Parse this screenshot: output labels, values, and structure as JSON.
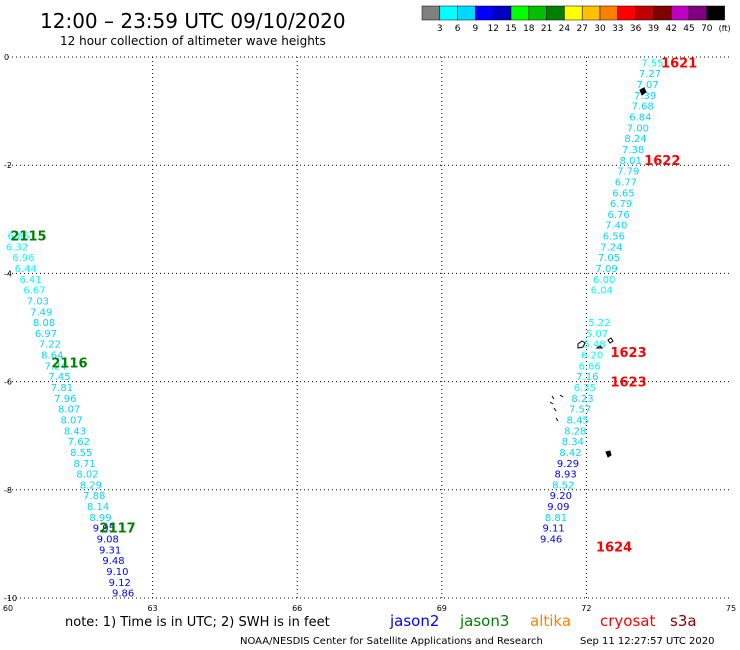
{
  "header": {
    "title": "12:00 – 23:59 UTC 09/10/2020",
    "subtitle": "12 hour collection of altimeter wave heights"
  },
  "scale": {
    "colors": [
      "#808080",
      "#00ffff",
      "#00d8ff",
      "#0000ff",
      "#0000c0",
      "#00ff00",
      "#00c000",
      "#008000",
      "#ffff00",
      "#ffc000",
      "#ff8000",
      "#ff0000",
      "#c00000",
      "#800000",
      "#c000c0",
      "#800080",
      "#000000"
    ],
    "labels": [
      "3",
      "6",
      "9",
      "12",
      "15",
      "18",
      "21",
      "24",
      "27",
      "30",
      "33",
      "36",
      "39",
      "42",
      "45",
      "70"
    ],
    "unit": "(ft)"
  },
  "footer": {
    "note": "note: 1) Time is in UTC; 2) SWH is in feet",
    "satellites": [
      {
        "name": "jason2",
        "color": "#0000ff"
      },
      {
        "name": "jason3",
        "color": "#008000"
      },
      {
        "name": "altika",
        "color": "#ff8000"
      },
      {
        "name": "cryosat",
        "color": "#ff0000"
      },
      {
        "name": "s3a",
        "color": "#800000"
      }
    ],
    "credit": "NOAA/NESDIS Center for Satellite Applications and Research",
    "timestamp": "Sep 11 12:27:57 UTC 2020"
  },
  "chart_data": {
    "type": "scatter",
    "xlim": [
      60,
      75
    ],
    "ylim": [
      -10,
      0
    ],
    "x_ticks": [
      "60",
      "63",
      "66",
      "69",
      "72",
      "75"
    ],
    "y_ticks": [
      "0",
      "-2",
      "-4",
      "-6",
      "-8",
      "-10"
    ],
    "grid": true,
    "tracks": [
      {
        "points": [
          {
            "x": 60.45,
            "y": -3.3,
            "v": "6.85",
            "c": "#00ffff"
          },
          {
            "x": 60.42,
            "y": -3.5,
            "v": "6.32",
            "c": "#00ffff"
          },
          {
            "x": 60.55,
            "y": -3.7,
            "v": "6.96",
            "c": "#00ffff"
          },
          {
            "x": 60.6,
            "y": -3.9,
            "v": "6.44",
            "c": "#00ffff"
          },
          {
            "x": 60.7,
            "y": -4.1,
            "v": "6.41",
            "c": "#00ffff"
          },
          {
            "x": 60.78,
            "y": -4.3,
            "v": "6.67",
            "c": "#00ffff"
          },
          {
            "x": 60.85,
            "y": -4.5,
            "v": "7.03",
            "c": "#00d8ff"
          },
          {
            "x": 60.92,
            "y": -4.7,
            "v": "7.49",
            "c": "#00d8ff"
          },
          {
            "x": 60.98,
            "y": -4.9,
            "v": "8.08",
            "c": "#00d8ff"
          },
          {
            "x": 61.02,
            "y": -5.1,
            "v": "6.97",
            "c": "#00d8ff"
          },
          {
            "x": 61.1,
            "y": -5.3,
            "v": "7.22",
            "c": "#00d8ff"
          },
          {
            "x": 61.15,
            "y": -5.5,
            "v": "8.64",
            "c": "#00d8ff"
          },
          {
            "x": 61.22,
            "y": -5.7,
            "v": "7.24",
            "c": "#00d8ff"
          },
          {
            "x": 61.3,
            "y": -5.9,
            "v": "7.45",
            "c": "#00d8ff"
          },
          {
            "x": 61.35,
            "y": -6.1,
            "v": "7.81",
            "c": "#00d8ff"
          },
          {
            "x": 61.42,
            "y": -6.3,
            "v": "7.96",
            "c": "#00d8ff"
          },
          {
            "x": 61.5,
            "y": -6.5,
            "v": "8.07",
            "c": "#00d8ff"
          },
          {
            "x": 61.55,
            "y": -6.7,
            "v": "8.07",
            "c": "#00d8ff"
          },
          {
            "x": 61.62,
            "y": -6.9,
            "v": "8.43",
            "c": "#00d8ff"
          },
          {
            "x": 61.7,
            "y": -7.1,
            "v": "7.62",
            "c": "#00d8ff"
          },
          {
            "x": 61.75,
            "y": -7.3,
            "v": "8.55",
            "c": "#00d8ff"
          },
          {
            "x": 61.82,
            "y": -7.5,
            "v": "8.71",
            "c": "#00d8ff"
          },
          {
            "x": 61.88,
            "y": -7.7,
            "v": "8.02",
            "c": "#00d8ff"
          },
          {
            "x": 61.95,
            "y": -7.9,
            "v": "8.29",
            "c": "#00d8ff"
          },
          {
            "x": 62.02,
            "y": -8.1,
            "v": "7.88",
            "c": "#00d8ff"
          },
          {
            "x": 62.1,
            "y": -8.3,
            "v": "8.14",
            "c": "#00d8ff"
          },
          {
            "x": 62.15,
            "y": -8.5,
            "v": "8.99",
            "c": "#00d8ff"
          },
          {
            "x": 62.22,
            "y": -8.7,
            "v": "9.95",
            "c": "#0000ff"
          },
          {
            "x": 62.3,
            "y": -8.9,
            "v": "9.08",
            "c": "#0000ff"
          },
          {
            "x": 62.35,
            "y": -9.1,
            "v": "9.31",
            "c": "#0000ff"
          },
          {
            "x": 62.42,
            "y": -9.3,
            "v": "9.48",
            "c": "#0000ff"
          },
          {
            "x": 62.5,
            "y": -9.5,
            "v": "9.10",
            "c": "#0000ff"
          },
          {
            "x": 62.55,
            "y": -9.7,
            "v": "9.12",
            "c": "#0000ff"
          },
          {
            "x": 62.62,
            "y": -9.9,
            "v": "9.86",
            "c": "#0000ff"
          }
        ],
        "times": [
          {
            "x": 60.8,
            "y": -3.3,
            "t": "2115",
            "c": "#008000"
          },
          {
            "x": 61.65,
            "y": -5.65,
            "t": "2116",
            "c": "#008000"
          },
          {
            "x": 62.65,
            "y": -8.7,
            "t": "2117",
            "c": "#008000"
          }
        ]
      },
      {
        "points": [
          {
            "x": 73.6,
            "y": -0.1,
            "v": "7.55",
            "c": "#00ffff"
          },
          {
            "x": 73.55,
            "y": -0.3,
            "v": "7.27",
            "c": "#00d8ff"
          },
          {
            "x": 73.5,
            "y": -0.5,
            "v": "7.07",
            "c": "#00d8ff"
          },
          {
            "x": 73.45,
            "y": -0.7,
            "v": "7.39",
            "c": "#00d8ff"
          },
          {
            "x": 73.4,
            "y": -0.9,
            "v": "7.68",
            "c": "#00d8ff"
          },
          {
            "x": 73.35,
            "y": -1.1,
            "v": "6.84",
            "c": "#00d8ff"
          },
          {
            "x": 73.3,
            "y": -1.3,
            "v": "7.00",
            "c": "#00d8ff"
          },
          {
            "x": 73.25,
            "y": -1.5,
            "v": "8.24",
            "c": "#00d8ff"
          },
          {
            "x": 73.2,
            "y": -1.7,
            "v": "7.38",
            "c": "#00d8ff"
          },
          {
            "x": 73.15,
            "y": -1.9,
            "v": "8.01",
            "c": "#00d8ff"
          },
          {
            "x": 73.1,
            "y": -2.1,
            "v": "7.79",
            "c": "#00d8ff"
          },
          {
            "x": 73.05,
            "y": -2.3,
            "v": "6.77",
            "c": "#00d8ff"
          },
          {
            "x": 73.0,
            "y": -2.5,
            "v": "6.65",
            "c": "#00d8ff"
          },
          {
            "x": 72.95,
            "y": -2.7,
            "v": "6.79",
            "c": "#00d8ff"
          },
          {
            "x": 72.9,
            "y": -2.9,
            "v": "6.76",
            "c": "#00d8ff"
          },
          {
            "x": 72.85,
            "y": -3.1,
            "v": "7.40",
            "c": "#00d8ff"
          },
          {
            "x": 72.8,
            "y": -3.3,
            "v": "6.56",
            "c": "#00d8ff"
          },
          {
            "x": 72.75,
            "y": -3.5,
            "v": "7.24",
            "c": "#00d8ff"
          },
          {
            "x": 72.7,
            "y": -3.7,
            "v": "7.05",
            "c": "#00d8ff"
          },
          {
            "x": 72.65,
            "y": -3.9,
            "v": "7.09",
            "c": "#00d8ff"
          },
          {
            "x": 72.6,
            "y": -4.1,
            "v": "6.00",
            "c": "#00ffff"
          },
          {
            "x": 72.55,
            "y": -4.3,
            "v": "6.04",
            "c": "#00ffff"
          },
          {
            "x": 72.5,
            "y": -4.9,
            "v": "5.22",
            "c": "#00ffff"
          },
          {
            "x": 72.45,
            "y": -5.1,
            "v": "5.07",
            "c": "#00ffff"
          },
          {
            "x": 72.4,
            "y": -5.3,
            "v": "5.48",
            "c": "#00ffff"
          },
          {
            "x": 72.35,
            "y": -5.5,
            "v": "6.20",
            "c": "#00ffff"
          },
          {
            "x": 72.3,
            "y": -5.7,
            "v": "6.66",
            "c": "#00ffff"
          },
          {
            "x": 72.25,
            "y": -5.9,
            "v": "7.16",
            "c": "#00d8ff"
          },
          {
            "x": 72.2,
            "y": -6.1,
            "v": "6.35",
            "c": "#00ffff"
          },
          {
            "x": 72.15,
            "y": -6.3,
            "v": "8.23",
            "c": "#00d8ff"
          },
          {
            "x": 72.1,
            "y": -6.5,
            "v": "7.57",
            "c": "#00d8ff"
          },
          {
            "x": 72.05,
            "y": -6.7,
            "v": "8.45",
            "c": "#00d8ff"
          },
          {
            "x": 72.0,
            "y": -6.9,
            "v": "8.28",
            "c": "#00d8ff"
          },
          {
            "x": 71.95,
            "y": -7.1,
            "v": "8.34",
            "c": "#00d8ff"
          },
          {
            "x": 71.9,
            "y": -7.3,
            "v": "8.42",
            "c": "#00d8ff"
          },
          {
            "x": 71.85,
            "y": -7.5,
            "v": "9.29",
            "c": "#0000ff"
          },
          {
            "x": 71.8,
            "y": -7.7,
            "v": "8.93",
            "c": "#0000ff"
          },
          {
            "x": 71.75,
            "y": -7.9,
            "v": "8.52",
            "c": "#00d8ff"
          },
          {
            "x": 71.7,
            "y": -8.1,
            "v": "9.20",
            "c": "#0000ff"
          },
          {
            "x": 71.65,
            "y": -8.3,
            "v": "9.09",
            "c": "#0000ff"
          },
          {
            "x": 71.6,
            "y": -8.5,
            "v": "8.81",
            "c": "#00d8ff"
          },
          {
            "x": 71.55,
            "y": -8.7,
            "v": "9.11",
            "c": "#0000ff"
          },
          {
            "x": 71.5,
            "y": -8.9,
            "v": "9.46",
            "c": "#0000ff"
          }
        ],
        "times": [
          {
            "x": 74.3,
            "y": -0.1,
            "t": "1621",
            "c": "#ff0000"
          },
          {
            "x": 73.95,
            "y": -1.9,
            "t": "1622",
            "c": "#ff0000"
          },
          {
            "x": 73.25,
            "y": -5.45,
            "t": "1623",
            "c": "#ff0000"
          },
          {
            "x": 73.25,
            "y": -6.0,
            "t": "1623",
            "c": "#ff0000"
          },
          {
            "x": 72.95,
            "y": -9.05,
            "t": "1624",
            "c": "#ff0000"
          }
        ]
      }
    ]
  }
}
